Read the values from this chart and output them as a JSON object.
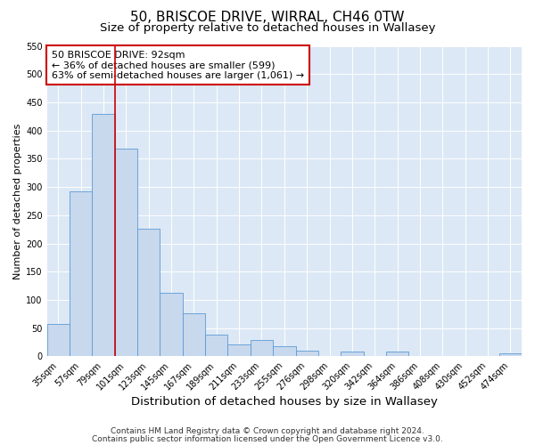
{
  "title": "50, BRISCOE DRIVE, WIRRAL, CH46 0TW",
  "subtitle": "Size of property relative to detached houses in Wallasey",
  "xlabel": "Distribution of detached houses by size in Wallasey",
  "ylabel": "Number of detached properties",
  "bar_labels": [
    "35sqm",
    "57sqm",
    "79sqm",
    "101sqm",
    "123sqm",
    "145sqm",
    "167sqm",
    "189sqm",
    "211sqm",
    "233sqm",
    "255sqm",
    "276sqm",
    "298sqm",
    "320sqm",
    "342sqm",
    "364sqm",
    "386sqm",
    "408sqm",
    "430sqm",
    "452sqm",
    "474sqm"
  ],
  "bar_values": [
    57,
    293,
    430,
    368,
    226,
    113,
    76,
    38,
    21,
    29,
    18,
    10,
    0,
    9,
    0,
    9,
    0,
    0,
    0,
    0,
    5
  ],
  "bar_color": "#c8d8ed",
  "bar_edge_color": "#5b9bd5",
  "vline_color": "#cc0000",
  "annotation_text": "50 BRISCOE DRIVE: 92sqm\n← 36% of detached houses are smaller (599)\n63% of semi-detached houses are larger (1,061) →",
  "annotation_box_facecolor": "#ffffff",
  "annotation_box_edgecolor": "#cc0000",
  "ylim": [
    0,
    550
  ],
  "yticks": [
    0,
    50,
    100,
    150,
    200,
    250,
    300,
    350,
    400,
    450,
    500,
    550
  ],
  "fig_bg_color": "#ffffff",
  "plot_bg_color": "#dce8f5",
  "grid_color": "#ffffff",
  "title_fontsize": 11,
  "subtitle_fontsize": 9.5,
  "xlabel_fontsize": 9.5,
  "ylabel_fontsize": 8,
  "tick_fontsize": 7,
  "annotation_fontsize": 8,
  "footer_fontsize": 6.5
}
